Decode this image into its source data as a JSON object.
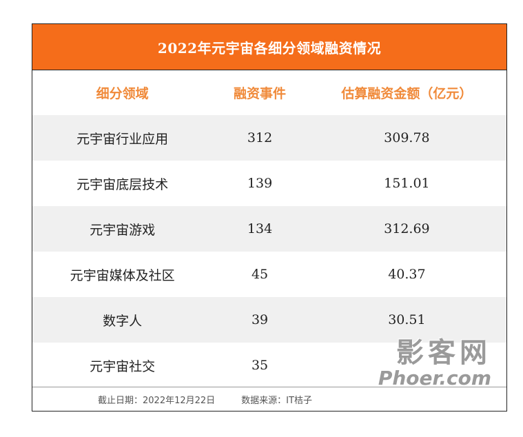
{
  "title": "2022年元宇宙各细分领域融资情况",
  "columns": [
    "细分领域",
    "融资事件",
    "估算融资金额（亿元）"
  ],
  "rows": [
    {
      "segment": "元宇宙行业应用",
      "events": "312",
      "amount": "309.78"
    },
    {
      "segment": "元宇宙底层技术",
      "events": "139",
      "amount": "151.01"
    },
    {
      "segment": "元宇宙游戏",
      "events": "134",
      "amount": "312.69"
    },
    {
      "segment": "元宇宙媒体及社区",
      "events": "45",
      "amount": "40.37"
    },
    {
      "segment": "数字人",
      "events": "39",
      "amount": "30.51"
    },
    {
      "segment": "元宇宙社交",
      "events": "35",
      "amount": ""
    }
  ],
  "footer": {
    "note": "截止日期：2022年12月22日",
    "source": "数据来源：IT桔子"
  },
  "watermark": {
    "cn": "影客网",
    "en": "Phoer.com"
  }
}
